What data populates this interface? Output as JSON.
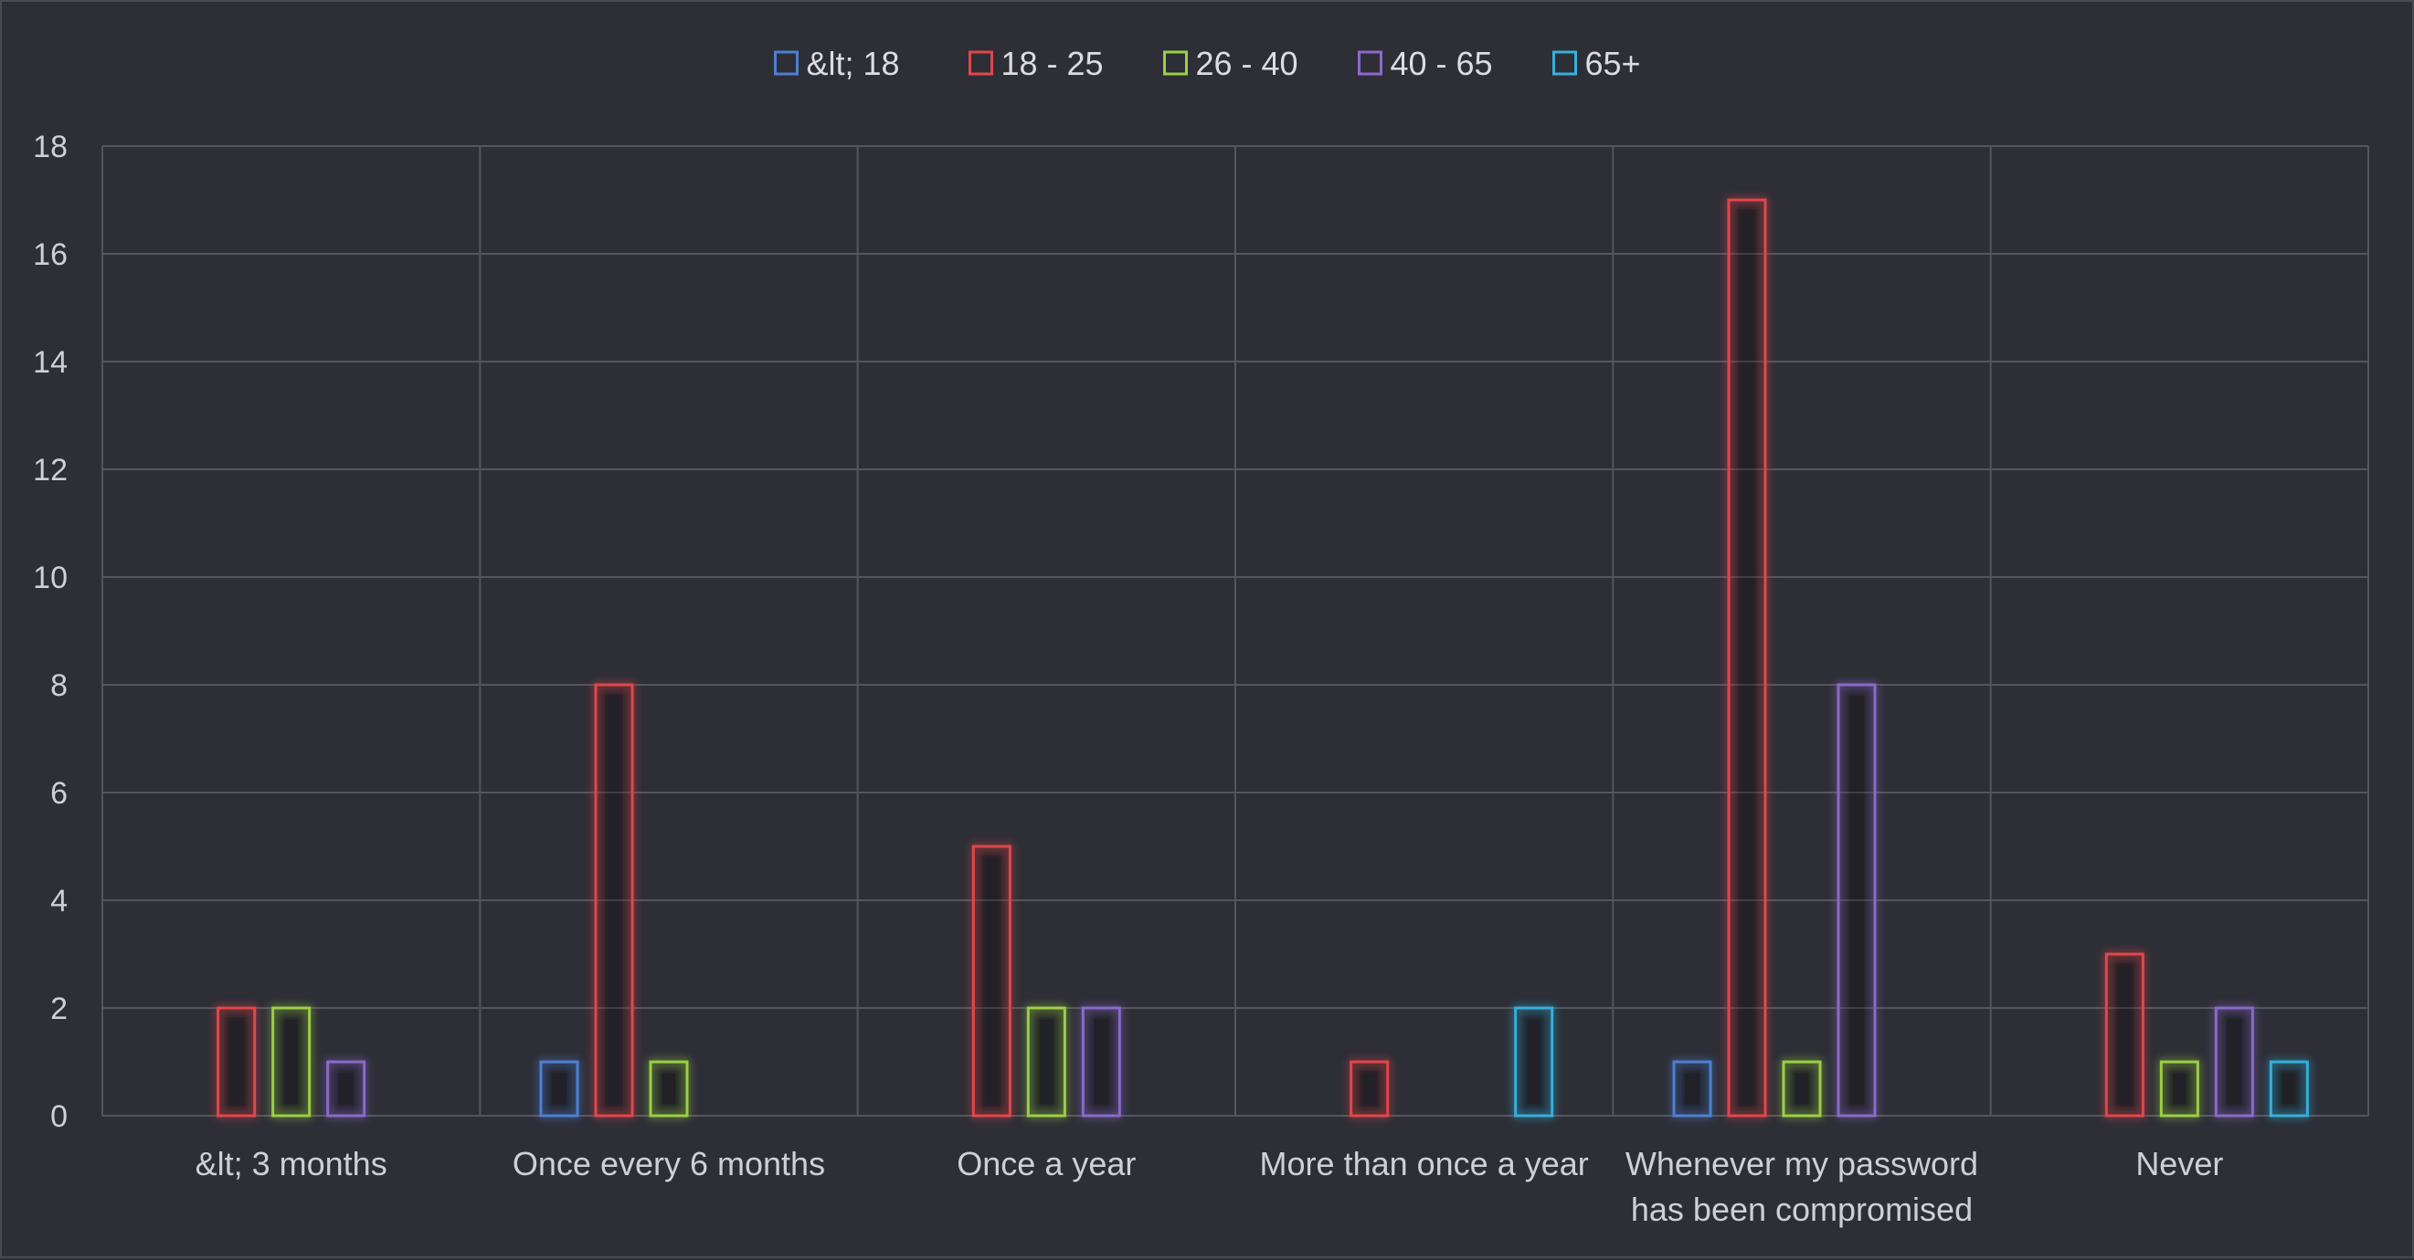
{
  "chart_data": {
    "type": "bar",
    "title": "",
    "xlabel": "",
    "ylabel": "",
    "ylim": [
      0,
      18
    ],
    "yticks": [
      0,
      2,
      4,
      6,
      8,
      10,
      12,
      14,
      16,
      18
    ],
    "grid": true,
    "legend_position": "top-center",
    "categories": [
      [
        "&lt; 3 months"
      ],
      [
        "Once every 6 months"
      ],
      [
        "Once a year"
      ],
      [
        "More than once a year"
      ],
      [
        "Whenever my password",
        "has been compromised"
      ],
      [
        "Never"
      ]
    ],
    "series": [
      {
        "name": "&lt; 18",
        "color": "#4f7fd0",
        "values": [
          0,
          1,
          0,
          0,
          1,
          0
        ]
      },
      {
        "name": "18 - 25",
        "color": "#e0474c",
        "values": [
          2,
          8,
          5,
          1,
          17,
          3
        ]
      },
      {
        "name": "26 - 40",
        "color": "#9bcf45",
        "values": [
          2,
          1,
          2,
          0,
          1,
          1
        ]
      },
      {
        "name": "40 - 65",
        "color": "#8a6ac8",
        "values": [
          1,
          0,
          2,
          0,
          8,
          2
        ]
      },
      {
        "name": "65+",
        "color": "#35b0dc",
        "values": [
          0,
          0,
          0,
          2,
          0,
          1
        ]
      }
    ],
    "colors": {
      "background": "#2d2e36",
      "gridline": "#55565c",
      "text": "#cfd0d4"
    }
  }
}
